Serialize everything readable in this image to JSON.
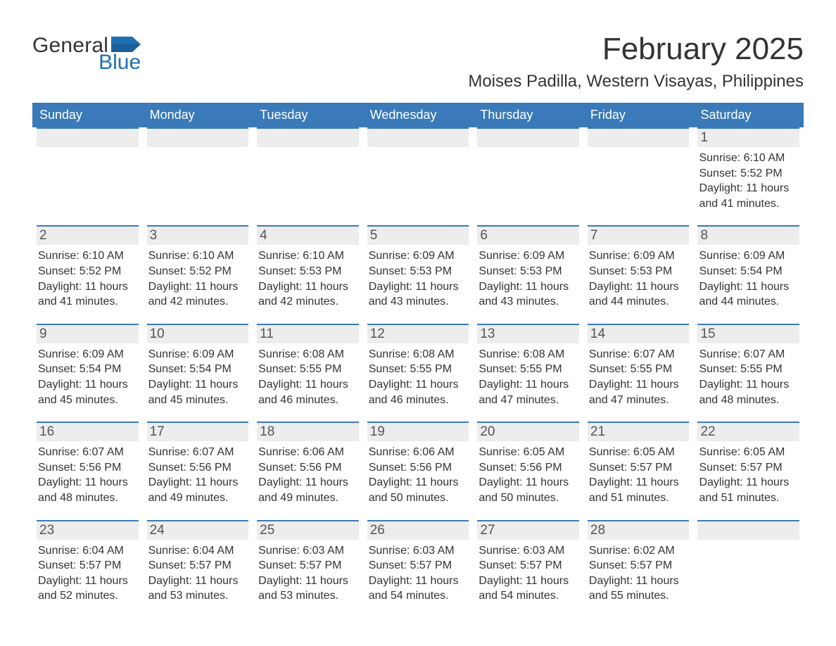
{
  "logo": {
    "word1": "General",
    "word2": "Blue",
    "flag_color": "#1f6fb2",
    "text_color": "#333333"
  },
  "header": {
    "month_year": "February 2025",
    "location": "Moises Padilla, Western Visayas, Philippines"
  },
  "colors": {
    "header_bg": "#3a7ab8",
    "header_text": "#ffffff",
    "daybar_bg": "#ededed",
    "daybar_border": "#3a7ab8",
    "body_text": "#333333",
    "muted_text": "#555555",
    "page_bg": "#ffffff"
  },
  "typography": {
    "title_fontsize": 44,
    "location_fontsize": 24,
    "weekday_fontsize": 18,
    "daynum_fontsize": 19,
    "detail_fontsize": 16
  },
  "layout": {
    "type": "calendar",
    "columns": 7,
    "rows": 5,
    "first_day_column_index": 6
  },
  "weekdays": [
    "Sunday",
    "Monday",
    "Tuesday",
    "Wednesday",
    "Thursday",
    "Friday",
    "Saturday"
  ],
  "days": [
    {
      "n": 1,
      "sunrise": "6:10 AM",
      "sunset": "5:52 PM",
      "dl_h": 11,
      "dl_m": 41
    },
    {
      "n": 2,
      "sunrise": "6:10 AM",
      "sunset": "5:52 PM",
      "dl_h": 11,
      "dl_m": 41
    },
    {
      "n": 3,
      "sunrise": "6:10 AM",
      "sunset": "5:52 PM",
      "dl_h": 11,
      "dl_m": 42
    },
    {
      "n": 4,
      "sunrise": "6:10 AM",
      "sunset": "5:53 PM",
      "dl_h": 11,
      "dl_m": 42
    },
    {
      "n": 5,
      "sunrise": "6:09 AM",
      "sunset": "5:53 PM",
      "dl_h": 11,
      "dl_m": 43
    },
    {
      "n": 6,
      "sunrise": "6:09 AM",
      "sunset": "5:53 PM",
      "dl_h": 11,
      "dl_m": 43
    },
    {
      "n": 7,
      "sunrise": "6:09 AM",
      "sunset": "5:53 PM",
      "dl_h": 11,
      "dl_m": 44
    },
    {
      "n": 8,
      "sunrise": "6:09 AM",
      "sunset": "5:54 PM",
      "dl_h": 11,
      "dl_m": 44
    },
    {
      "n": 9,
      "sunrise": "6:09 AM",
      "sunset": "5:54 PM",
      "dl_h": 11,
      "dl_m": 45
    },
    {
      "n": 10,
      "sunrise": "6:09 AM",
      "sunset": "5:54 PM",
      "dl_h": 11,
      "dl_m": 45
    },
    {
      "n": 11,
      "sunrise": "6:08 AM",
      "sunset": "5:55 PM",
      "dl_h": 11,
      "dl_m": 46
    },
    {
      "n": 12,
      "sunrise": "6:08 AM",
      "sunset": "5:55 PM",
      "dl_h": 11,
      "dl_m": 46
    },
    {
      "n": 13,
      "sunrise": "6:08 AM",
      "sunset": "5:55 PM",
      "dl_h": 11,
      "dl_m": 47
    },
    {
      "n": 14,
      "sunrise": "6:07 AM",
      "sunset": "5:55 PM",
      "dl_h": 11,
      "dl_m": 47
    },
    {
      "n": 15,
      "sunrise": "6:07 AM",
      "sunset": "5:55 PM",
      "dl_h": 11,
      "dl_m": 48
    },
    {
      "n": 16,
      "sunrise": "6:07 AM",
      "sunset": "5:56 PM",
      "dl_h": 11,
      "dl_m": 48
    },
    {
      "n": 17,
      "sunrise": "6:07 AM",
      "sunset": "5:56 PM",
      "dl_h": 11,
      "dl_m": 49
    },
    {
      "n": 18,
      "sunrise": "6:06 AM",
      "sunset": "5:56 PM",
      "dl_h": 11,
      "dl_m": 49
    },
    {
      "n": 19,
      "sunrise": "6:06 AM",
      "sunset": "5:56 PM",
      "dl_h": 11,
      "dl_m": 50
    },
    {
      "n": 20,
      "sunrise": "6:05 AM",
      "sunset": "5:56 PM",
      "dl_h": 11,
      "dl_m": 50
    },
    {
      "n": 21,
      "sunrise": "6:05 AM",
      "sunset": "5:57 PM",
      "dl_h": 11,
      "dl_m": 51
    },
    {
      "n": 22,
      "sunrise": "6:05 AM",
      "sunset": "5:57 PM",
      "dl_h": 11,
      "dl_m": 51
    },
    {
      "n": 23,
      "sunrise": "6:04 AM",
      "sunset": "5:57 PM",
      "dl_h": 11,
      "dl_m": 52
    },
    {
      "n": 24,
      "sunrise": "6:04 AM",
      "sunset": "5:57 PM",
      "dl_h": 11,
      "dl_m": 53
    },
    {
      "n": 25,
      "sunrise": "6:03 AM",
      "sunset": "5:57 PM",
      "dl_h": 11,
      "dl_m": 53
    },
    {
      "n": 26,
      "sunrise": "6:03 AM",
      "sunset": "5:57 PM",
      "dl_h": 11,
      "dl_m": 54
    },
    {
      "n": 27,
      "sunrise": "6:03 AM",
      "sunset": "5:57 PM",
      "dl_h": 11,
      "dl_m": 54
    },
    {
      "n": 28,
      "sunrise": "6:02 AM",
      "sunset": "5:57 PM",
      "dl_h": 11,
      "dl_m": 55
    }
  ],
  "labels": {
    "sunrise": "Sunrise:",
    "sunset": "Sunset:",
    "daylight": "Daylight:",
    "hours": "hours",
    "and": "and",
    "minutes": "minutes."
  }
}
